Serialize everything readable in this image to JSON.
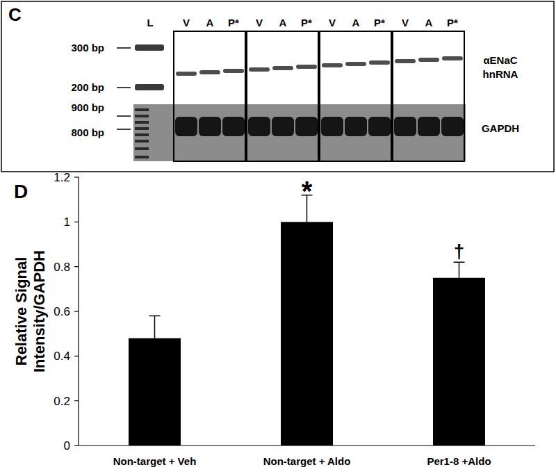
{
  "gel": {
    "panel_label": "C",
    "ladder_label": "L",
    "ladder_sizes_top": [
      "300 bp",
      "200 bp"
    ],
    "ladder_sizes_bottom": [
      "900 bp",
      "800 bp"
    ],
    "lanes": [
      "V",
      "A",
      "P*",
      "V",
      "A",
      "P*",
      "V",
      "A",
      "P*",
      "V",
      "A",
      "P*"
    ],
    "row_labels": [
      [
        "αENaC",
        "hnRNA"
      ],
      [
        "GAPDH"
      ]
    ]
  },
  "chart_data": {
    "type": "bar",
    "panel_label": "D",
    "y_label": "Relative Signal Intensity/GAPDH",
    "categories": [
      "Non-target + Veh",
      "Non-target + Aldo",
      "Per1-8 +Aldo"
    ],
    "values": [
      0.48,
      1.0,
      0.75
    ],
    "errors": [
      0.1,
      0.12,
      0.07
    ],
    "significance": [
      null,
      "*",
      "†"
    ],
    "color": "#000000",
    "ylim": [
      0,
      1.2
    ],
    "yticks": [
      0,
      0.2,
      0.4,
      0.6,
      0.8,
      1,
      1.2
    ],
    "grid": false
  }
}
